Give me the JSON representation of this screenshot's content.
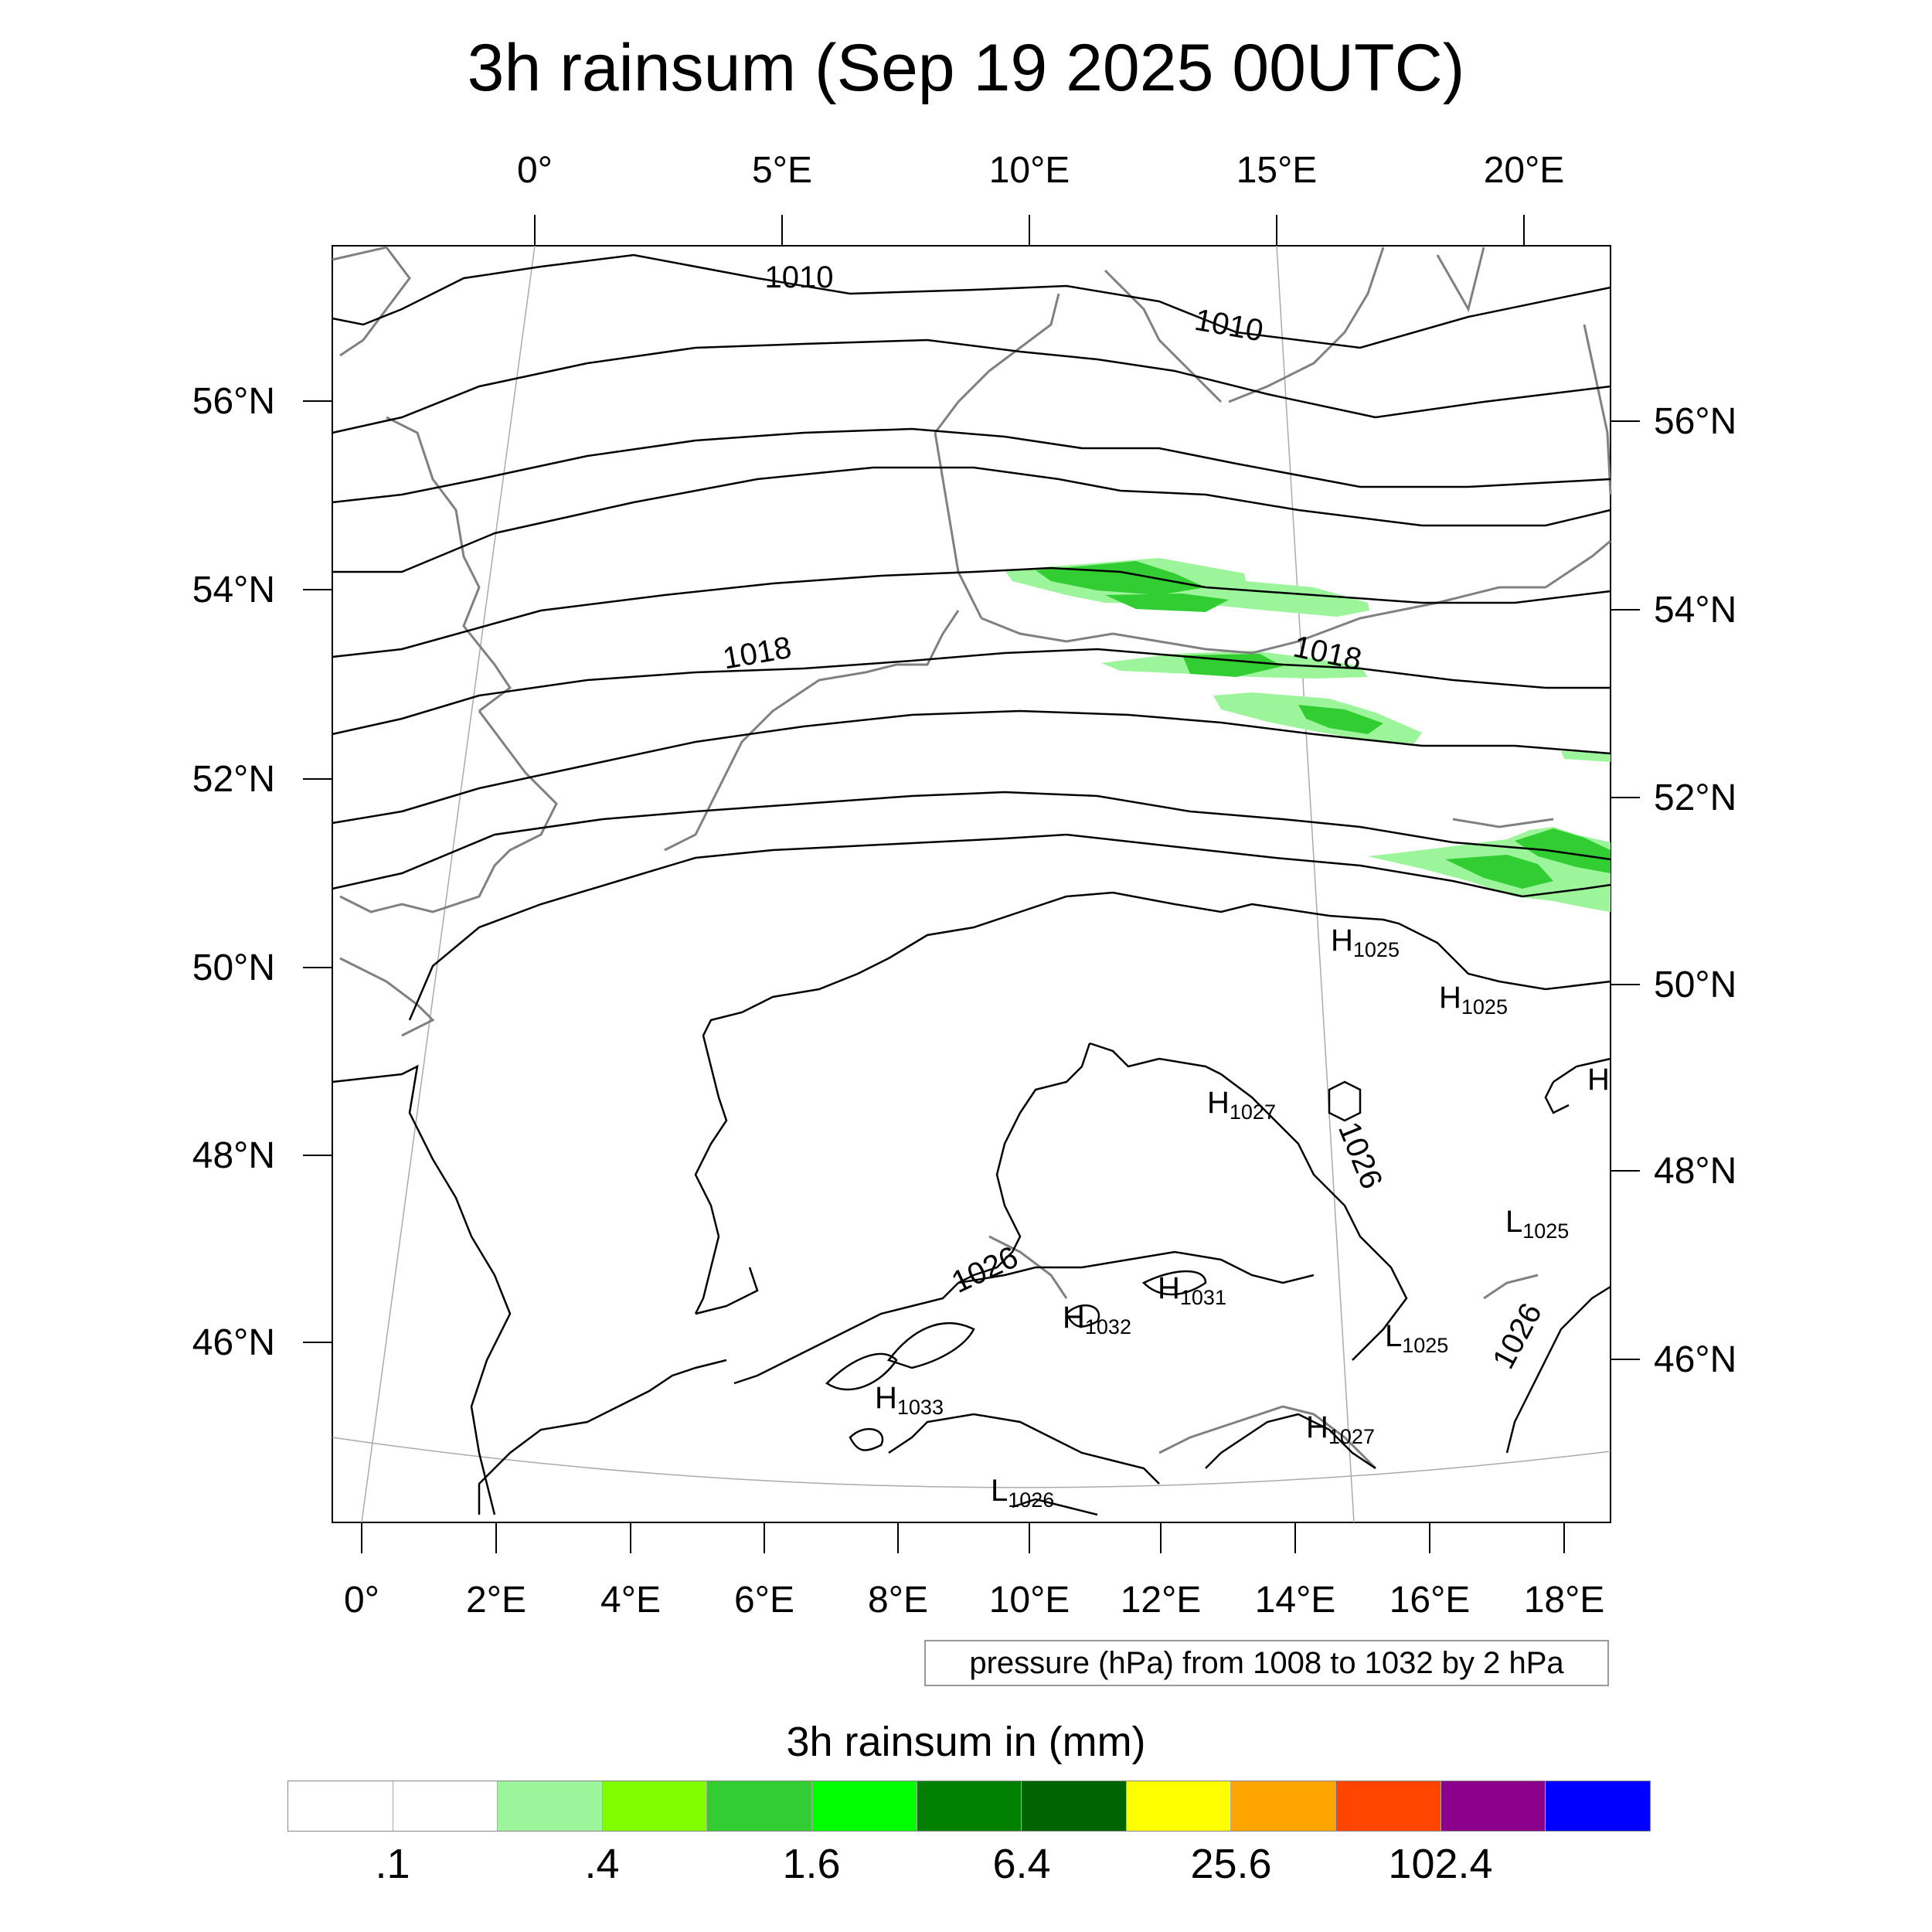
{
  "title": "3h rainsum (Sep 19 2025 00UTC)",
  "top_lon_labels": [
    "0°",
    "5°E",
    "10°E",
    "15°E",
    "20°E"
  ],
  "bottom_lon_labels": [
    "0°",
    "2°E",
    "4°E",
    "6°E",
    "8°E",
    "10°E",
    "12°E",
    "14°E",
    "16°E",
    "18°E"
  ],
  "left_lat_labels": [
    "56°N",
    "54°N",
    "52°N",
    "50°N",
    "48°N",
    "46°N"
  ],
  "right_lat_labels": [
    "56°N",
    "54°N",
    "52°N",
    "50°N",
    "48°N",
    "46°N"
  ],
  "contour_labels": [
    "1010",
    "1010",
    "1018",
    "1018",
    "1026",
    "1026",
    "1026"
  ],
  "pressure_centers": [
    {
      "type": "H",
      "value": "1025"
    },
    {
      "type": "H",
      "value": "1025"
    },
    {
      "type": "H",
      "value": "1027"
    },
    {
      "type": "L",
      "value": "1025"
    },
    {
      "type": "H",
      "value": "1031"
    },
    {
      "type": "H",
      "value": "1032"
    },
    {
      "type": "L",
      "value": "1025"
    },
    {
      "type": "H",
      "value": "1033"
    },
    {
      "type": "H",
      "value": "1027"
    },
    {
      "type": "L",
      "value": "1026"
    }
  ],
  "edge_center_letter": "H",
  "contour_note": "pressure (hPa) from 1008 to 1032 by 2 hPa",
  "legend": {
    "title": "3h rainsum in (mm)",
    "colors": [
      "#ffffff",
      "#ffffff",
      "#9cf59a",
      "#80ff00",
      "#32cd32",
      "#00ff00",
      "#008000",
      "#006400",
      "#ffff00",
      "#ffa500",
      "#ff4500",
      "#8b008b",
      "#0000ff"
    ],
    "labels": [
      ".1",
      ".4",
      "1.6",
      "6.4",
      "25.6",
      "102.4"
    ]
  },
  "colors": {
    "coastline": "#808080",
    "contour": "#000000",
    "graticule": "#aaaaaa",
    "rain_light": "#9cf59a",
    "rain_mid": "#32cd32",
    "rain_strong": "#00c000"
  }
}
